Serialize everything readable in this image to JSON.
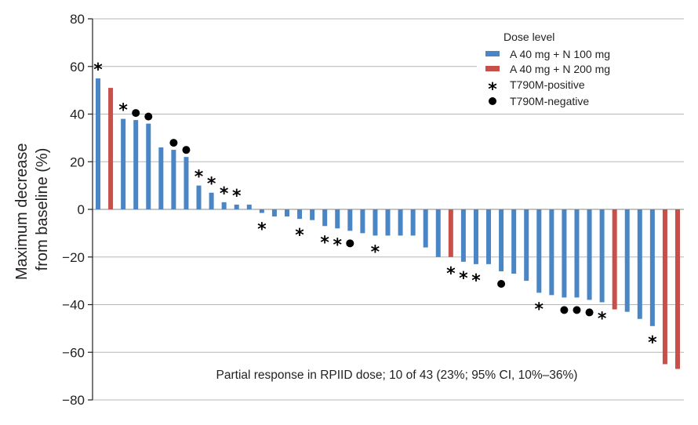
{
  "chart_data": {
    "type": "bar",
    "title": "",
    "ylabel_lines": [
      "Maximum decrease",
      "from baseline (%)"
    ],
    "xlabel": "",
    "ylim": [
      -80,
      80
    ],
    "yticks": [
      80,
      60,
      40,
      20,
      0,
      -20,
      -40,
      -60,
      -80
    ],
    "ytick_labels": [
      "80",
      "60",
      "40",
      "20",
      "0",
      "−20",
      "−40",
      "−60",
      "−80"
    ],
    "grid": true,
    "colors": {
      "A 40 mg + N 100 mg": "#4a86c5",
      "A 40 mg + N 200 mg": "#c8504b"
    },
    "series_names": [
      "A 40 mg + N 100 mg",
      "A 40 mg + N 200 mg"
    ],
    "bars": [
      {
        "value": 55,
        "dose": "A 40 mg + N 100 mg",
        "marker": "star"
      },
      {
        "value": 51,
        "dose": "A 40 mg + N 200 mg",
        "marker": ""
      },
      {
        "value": 38,
        "dose": "A 40 mg + N 100 mg",
        "marker": "star"
      },
      {
        "value": 37.5,
        "dose": "A 40 mg + N 100 mg",
        "marker": "dot"
      },
      {
        "value": 36,
        "dose": "A 40 mg + N 100 mg",
        "marker": "dot"
      },
      {
        "value": 26,
        "dose": "A 40 mg + N 100 mg",
        "marker": ""
      },
      {
        "value": 25,
        "dose": "A 40 mg + N 100 mg",
        "marker": "dot"
      },
      {
        "value": 22,
        "dose": "A 40 mg + N 100 mg",
        "marker": "dot"
      },
      {
        "value": 10,
        "dose": "A 40 mg + N 100 mg",
        "marker": "star"
      },
      {
        "value": 7,
        "dose": "A 40 mg + N 100 mg",
        "marker": "star"
      },
      {
        "value": 3,
        "dose": "A 40 mg + N 100 mg",
        "marker": "star"
      },
      {
        "value": 2,
        "dose": "A 40 mg + N 100 mg",
        "marker": "star"
      },
      {
        "value": 2,
        "dose": "A 40 mg + N 100 mg",
        "marker": ""
      },
      {
        "value": -1.5,
        "dose": "A 40 mg + N 100 mg",
        "marker": "star"
      },
      {
        "value": -3,
        "dose": "A 40 mg + N 100 mg",
        "marker": ""
      },
      {
        "value": -3,
        "dose": "A 40 mg + N 100 mg",
        "marker": ""
      },
      {
        "value": -4,
        "dose": "A 40 mg + N 100 mg",
        "marker": "star"
      },
      {
        "value": -4.5,
        "dose": "A 40 mg + N 100 mg",
        "marker": ""
      },
      {
        "value": -7,
        "dose": "A 40 mg + N 100 mg",
        "marker": "star"
      },
      {
        "value": -8,
        "dose": "A 40 mg + N 100 mg",
        "marker": "star"
      },
      {
        "value": -9,
        "dose": "A 40 mg + N 100 mg",
        "marker": "dot"
      },
      {
        "value": -10,
        "dose": "A 40 mg + N 100 mg",
        "marker": ""
      },
      {
        "value": -11,
        "dose": "A 40 mg + N 100 mg",
        "marker": "star"
      },
      {
        "value": -11,
        "dose": "A 40 mg + N 100 mg",
        "marker": ""
      },
      {
        "value": -11,
        "dose": "A 40 mg + N 100 mg",
        "marker": ""
      },
      {
        "value": -11,
        "dose": "A 40 mg + N 100 mg",
        "marker": ""
      },
      {
        "value": -16,
        "dose": "A 40 mg + N 100 mg",
        "marker": ""
      },
      {
        "value": -20,
        "dose": "A 40 mg + N 100 mg",
        "marker": ""
      },
      {
        "value": -20,
        "dose": "A 40 mg + N 200 mg",
        "marker": "star"
      },
      {
        "value": -22,
        "dose": "A 40 mg + N 100 mg",
        "marker": "star"
      },
      {
        "value": -23,
        "dose": "A 40 mg + N 100 mg",
        "marker": "star"
      },
      {
        "value": -23,
        "dose": "A 40 mg + N 100 mg",
        "marker": ""
      },
      {
        "value": -26,
        "dose": "A 40 mg + N 100 mg",
        "marker": "dot"
      },
      {
        "value": -27,
        "dose": "A 40 mg + N 100 mg",
        "marker": ""
      },
      {
        "value": -30,
        "dose": "A 40 mg + N 100 mg",
        "marker": ""
      },
      {
        "value": -35,
        "dose": "A 40 mg + N 100 mg",
        "marker": "star"
      },
      {
        "value": -36,
        "dose": "A 40 mg + N 100 mg",
        "marker": ""
      },
      {
        "value": -37,
        "dose": "A 40 mg + N 100 mg",
        "marker": "dot"
      },
      {
        "value": -37,
        "dose": "A 40 mg + N 100 mg",
        "marker": "dot"
      },
      {
        "value": -38,
        "dose": "A 40 mg + N 100 mg",
        "marker": "dot"
      },
      {
        "value": -39,
        "dose": "A 40 mg + N 100 mg",
        "marker": "star"
      },
      {
        "value": -42,
        "dose": "A 40 mg + N 200 mg",
        "marker": ""
      },
      {
        "value": -43,
        "dose": "A 40 mg + N 100 mg",
        "marker": ""
      },
      {
        "value": -46,
        "dose": "A 40 mg + N 100 mg",
        "marker": ""
      },
      {
        "value": -49,
        "dose": "A 40 mg + N 100 mg",
        "marker": "star"
      },
      {
        "value": -65,
        "dose": "A 40 mg + N 200 mg",
        "marker": ""
      },
      {
        "value": -67,
        "dose": "A 40 mg + N 200 mg",
        "marker": ""
      }
    ],
    "legend": {
      "title": "Dose level",
      "placement": "top-right",
      "entries": [
        {
          "label": "A 40 mg + N 100 mg",
          "symbol": "bar",
          "color": "#4a86c5"
        },
        {
          "label": "A 40 mg + N 200 mg",
          "symbol": "bar",
          "color": "#c8504b"
        },
        {
          "label": "T790M-positive",
          "symbol": "star",
          "glyph": "*"
        },
        {
          "label": "T790M-negative",
          "symbol": "dot",
          "glyph": "●"
        }
      ]
    },
    "annotation": "Partial response in RPIID dose; 10 of 43 (23%; 95% CI, 10%–36%)",
    "marker_glyphs": {
      "star": "*",
      "dot": "●"
    }
  }
}
